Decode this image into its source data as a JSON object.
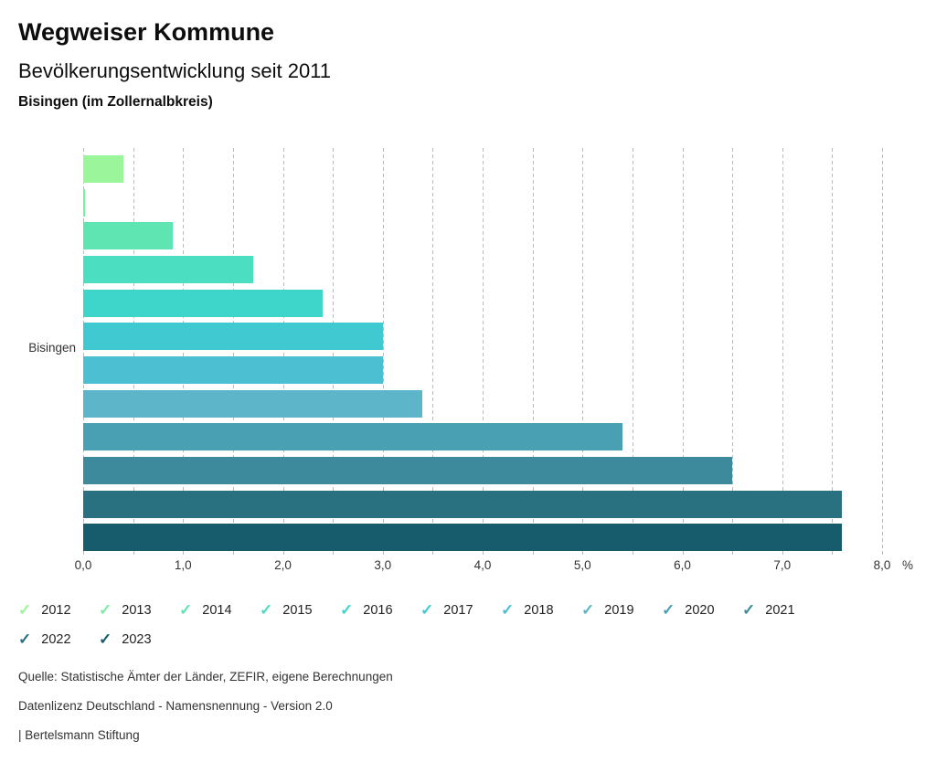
{
  "header": {
    "title": "Wegweiser Kommune",
    "subtitle": "Bevölkerungsentwicklung seit 2011",
    "region": "Bisingen (im Zollernalbkreis)"
  },
  "chart_data": {
    "type": "bar",
    "orientation": "horizontal",
    "title": "Bevölkerungsentwicklung seit 2011",
    "group_label": "Bisingen",
    "categories": [
      "2012",
      "2013",
      "2014",
      "2015",
      "2016",
      "2017",
      "2018",
      "2019",
      "2020",
      "2021",
      "2022",
      "2023"
    ],
    "values": [
      0.4,
      0.0,
      0.9,
      1.7,
      2.4,
      3.0,
      3.0,
      3.4,
      5.4,
      6.5,
      7.6,
      7.6
    ],
    "colors": [
      "#9BF59B",
      "#7CEDA4",
      "#5FE5B1",
      "#4BDEC0",
      "#3ED5CA",
      "#40C9D1",
      "#4CBFD2",
      "#5CB5C8",
      "#4AA0B3",
      "#3D8A9D",
      "#297181",
      "#165C6C"
    ],
    "xlim": [
      0,
      8
    ],
    "gridline_step": 0.5,
    "grid_style": "dashed-vertical",
    "x_major_ticks": [
      {
        "value": 0,
        "label": "0,0"
      },
      {
        "value": 1,
        "label": "1,0"
      },
      {
        "value": 2,
        "label": "2,0"
      },
      {
        "value": 3,
        "label": "3,0"
      },
      {
        "value": 4,
        "label": "4,0"
      },
      {
        "value": 5,
        "label": "5,0"
      },
      {
        "value": 6,
        "label": "6,0"
      },
      {
        "value": 7,
        "label": "7,0"
      },
      {
        "value": 8,
        "label": "8,0"
      }
    ],
    "unit_label": "%",
    "legend_position": "bottom"
  },
  "legend": {
    "checkmark_glyph": "✓",
    "items": [
      {
        "label": "2012",
        "color": "#9BF59B",
        "checked": true
      },
      {
        "label": "2013",
        "color": "#7CEDA4",
        "checked": true
      },
      {
        "label": "2014",
        "color": "#5FE5B1",
        "checked": true
      },
      {
        "label": "2015",
        "color": "#4BDEC0",
        "checked": true
      },
      {
        "label": "2016",
        "color": "#3ED5CA",
        "checked": true
      },
      {
        "label": "2017",
        "color": "#40C9D1",
        "checked": true
      },
      {
        "label": "2018",
        "color": "#4CBFD2",
        "checked": true
      },
      {
        "label": "2019",
        "color": "#5CB5C8",
        "checked": true
      },
      {
        "label": "2020",
        "color": "#4AA0B3",
        "checked": true
      },
      {
        "label": "2021",
        "color": "#3D8A9D",
        "checked": true
      },
      {
        "label": "2022",
        "color": "#297181",
        "checked": true
      },
      {
        "label": "2023",
        "color": "#165C6C",
        "checked": true
      }
    ]
  },
  "footer": {
    "source_line": "Quelle: Statistische Ämter der Länder, ZEFIR, eigene Berechnungen",
    "license_line": "Datenlizenz Deutschland - Namensnennung - Version 2.0",
    "attribution_line": "| Bertelsmann Stiftung"
  }
}
